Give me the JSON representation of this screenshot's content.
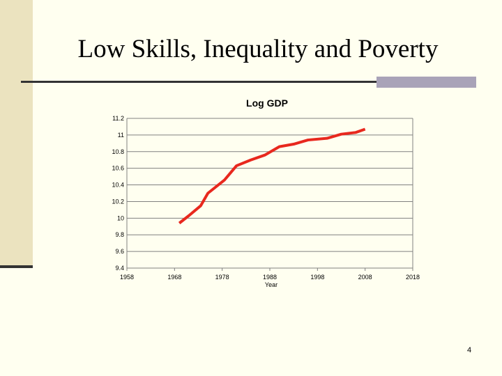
{
  "slide": {
    "title": "Low Skills, Inequality and Poverty",
    "page_number": "4"
  },
  "chart_data": {
    "type": "line",
    "title": "Log GDP",
    "x_label": "Year",
    "x": [
      1969,
      1971,
      1973.5,
      1975,
      1978.5,
      1981,
      1984,
      1987,
      1990,
      1993,
      1996,
      2000,
      2003,
      2006,
      2008
    ],
    "values": [
      9.94,
      10.03,
      10.15,
      10.3,
      10.46,
      10.63,
      10.7,
      10.76,
      10.86,
      10.89,
      10.94,
      10.96,
      11.01,
      11.03,
      11.07
    ],
    "color": "#e8281e",
    "xlim": [
      1958,
      2018
    ],
    "xticks": [
      1958,
      1968,
      1978,
      1988,
      1998,
      2008,
      2018
    ],
    "ylim": [
      9.4,
      11.2
    ],
    "yticks": [
      9.4,
      9.6,
      9.8,
      10,
      10.2,
      10.4,
      10.6,
      10.8,
      11,
      11.2
    ],
    "grid": true
  }
}
